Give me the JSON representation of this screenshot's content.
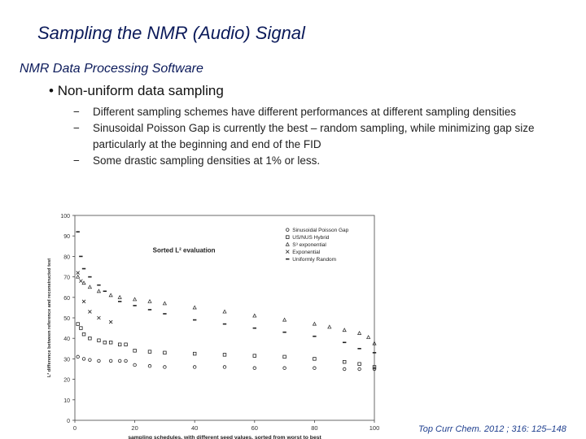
{
  "slide": {
    "title": "Sampling the NMR (Audio) Signal",
    "subtitle": "NMR Data Processing Software",
    "bullet": "Non-uniform data sampling",
    "bullet_marker": "•",
    "sub_bullets": [
      "Different sampling schemes have different performances at different sampling densities",
      "Sinusoidal Poisson Gap is currently the best – random sampling, while minimizing gap size particularly at the beginning and end of the FID",
      "Some drastic sampling densities at 1% or less."
    ],
    "dash": "−",
    "citation": "Top Curr Chem. 2012 ; 316: 125–148"
  },
  "chart_data": {
    "type": "scatter",
    "title": "Sorted L² evaluation",
    "xlabel": "sampling schedules, with different seed values, sorted from worst to best",
    "ylabel": "L² difference between reference and reconstructed test",
    "xlim": [
      0,
      100
    ],
    "ylim": [
      0,
      100
    ],
    "xticks": [
      0,
      20,
      40,
      60,
      80,
      100
    ],
    "yticks": [
      0,
      10,
      20,
      30,
      40,
      50,
      60,
      70,
      80,
      90,
      100
    ],
    "grid": false,
    "legend_position": "top-right",
    "series": [
      {
        "name": "Sinusoidal Poisson Gap",
        "marker": "o",
        "color": "#222222",
        "x": [
          1,
          3,
          5,
          8,
          12,
          15,
          17,
          20,
          25,
          30,
          40,
          50,
          60,
          70,
          80,
          90,
          95,
          100
        ],
        "y": [
          31,
          30,
          29.5,
          29,
          29,
          29,
          29,
          27,
          26.5,
          26,
          26,
          26,
          25.5,
          25.5,
          25.5,
          25,
          25,
          25
        ]
      },
      {
        "name": "US/NUS Hybrid",
        "marker": "s",
        "color": "#222222",
        "x": [
          1,
          2,
          3,
          5,
          8,
          10,
          12,
          15,
          17,
          20,
          25,
          30,
          40,
          50,
          60,
          70,
          80,
          90,
          95,
          100
        ],
        "y": [
          47,
          45,
          42,
          40,
          39,
          38,
          38,
          37,
          37,
          34,
          33.5,
          33,
          32.5,
          32,
          31.5,
          31,
          30,
          28.5,
          27.5,
          26
        ]
      },
      {
        "name": "S³ exponential",
        "marker": "^",
        "color": "#222222",
        "x": [
          1,
          3,
          5,
          8,
          12,
          15,
          20,
          25,
          30,
          40,
          50,
          60,
          70,
          80,
          85,
          90,
          95,
          98,
          100
        ],
        "y": [
          70,
          67,
          65,
          63,
          61,
          60,
          59,
          58,
          57,
          55,
          53,
          51,
          49,
          47,
          45.5,
          44,
          42.5,
          40.5,
          37.5
        ]
      },
      {
        "name": "Exponential",
        "marker": "x",
        "color": "#222222",
        "x": [
          1,
          2,
          3,
          5,
          8,
          12
        ],
        "y": [
          72,
          68,
          58,
          53,
          50,
          48
        ]
      },
      {
        "name": "Uniformly Random",
        "marker": "-",
        "color": "#222222",
        "x": [
          1,
          2,
          3,
          5,
          8,
          10,
          15,
          20,
          25,
          30,
          40,
          50,
          60,
          70,
          80,
          90,
          95,
          100
        ],
        "y": [
          92,
          80,
          74,
          70,
          66,
          63,
          58,
          56,
          54,
          52,
          49,
          47,
          45,
          43,
          41,
          38,
          35,
          33
        ]
      }
    ]
  }
}
